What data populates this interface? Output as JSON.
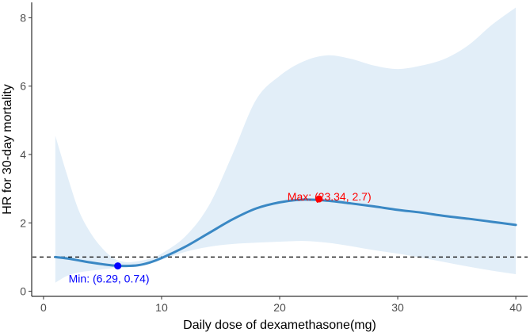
{
  "chart_data": {
    "type": "line",
    "title": "",
    "xlabel": "Daily dose of dexamethasone(mg)",
    "ylabel": "HR for 30-day mortality",
    "xlim": [
      -1,
      41
    ],
    "ylim": [
      -0.15,
      8.45
    ],
    "x_ticks": [
      0,
      10,
      20,
      30,
      40
    ],
    "y_ticks": [
      0,
      2,
      4,
      6,
      8
    ],
    "reference_line": {
      "y": 1,
      "style": "dashed"
    },
    "legend": "none",
    "grid": false,
    "colors": {
      "line": "#3a88c4",
      "band": "#e2eef8",
      "max_point": "#ff0000",
      "min_point": "#0000ff"
    },
    "series": [
      {
        "x": [
          1,
          2,
          3,
          4,
          5,
          6,
          7,
          8,
          9,
          10,
          12,
          14,
          16,
          18,
          20,
          22,
          24,
          26,
          28,
          30,
          32,
          34,
          36,
          38,
          40
        ],
        "y": [
          1.0,
          0.96,
          0.9,
          0.84,
          0.79,
          0.75,
          0.74,
          0.76,
          0.84,
          0.97,
          1.3,
          1.7,
          2.1,
          2.42,
          2.6,
          2.68,
          2.65,
          2.57,
          2.48,
          2.38,
          2.3,
          2.2,
          2.12,
          2.03,
          1.94
        ],
        "lower": [
          0.25,
          0.45,
          0.55,
          0.6,
          0.64,
          0.68,
          0.7,
          0.73,
          0.8,
          0.92,
          1.15,
          1.3,
          1.38,
          1.42,
          1.45,
          1.47,
          1.42,
          1.32,
          1.2,
          1.1,
          0.98,
          0.85,
          0.72,
          0.6,
          0.5
        ],
        "upper": [
          4.55,
          3.4,
          2.35,
          1.7,
          1.25,
          0.95,
          0.85,
          0.88,
          0.95,
          1.1,
          1.6,
          2.5,
          4.0,
          5.6,
          6.3,
          6.72,
          6.9,
          6.8,
          6.6,
          6.5,
          6.6,
          6.8,
          7.2,
          7.8,
          8.3
        ]
      }
    ],
    "annotations": [
      {
        "label": "Max: (23.34, 2.7)",
        "x": 23.34,
        "y": 2.7,
        "color": "#ff0000",
        "anchor": "above-left"
      },
      {
        "label": "Min: (6.29, 0.74)",
        "x": 6.29,
        "y": 0.74,
        "color": "#0000ff",
        "anchor": "below-left"
      }
    ]
  }
}
